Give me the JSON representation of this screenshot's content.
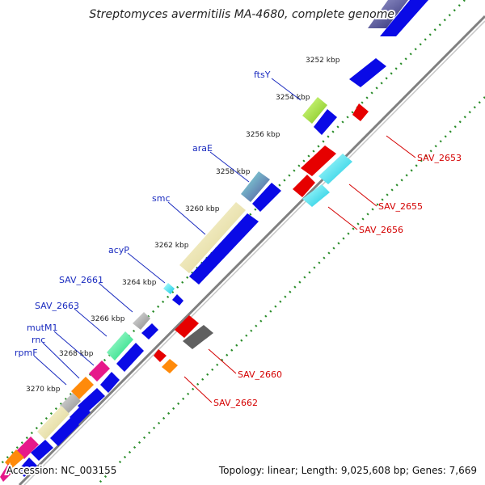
{
  "title": "Streptomyces avermitilis MA-4680, complete genome",
  "footer": {
    "accession": "Accession: NC_003155",
    "stats": "Topology: linear; Length: 9,025,608 bp; Genes: 7,669"
  },
  "kbp_ticks": [
    "3252 kbp",
    "3254 kbp",
    "3256 kbp",
    "3258 kbp",
    "3260 kbp",
    "3262 kbp",
    "3264 kbp",
    "3266 kbp",
    "3268 kbp",
    "3270 kbp"
  ],
  "forward_labels": [
    "ftsY",
    "araE",
    "smc",
    "acyP",
    "SAV_2661",
    "SAV_2663",
    "mutM1",
    "rnc",
    "rpmF"
  ],
  "reverse_labels": [
    "SAV_2653",
    "SAV_2655",
    "SAV_2656",
    "SAV_2660",
    "SAV_2662"
  ],
  "colors": {
    "backbone": "#808080",
    "tick_dots": "#2a8c2a",
    "forward_label": "#1a2bbf",
    "reverse_label": "#d40000",
    "cds_blue": "#0a0ae6",
    "cds_red": "#e60000"
  }
}
